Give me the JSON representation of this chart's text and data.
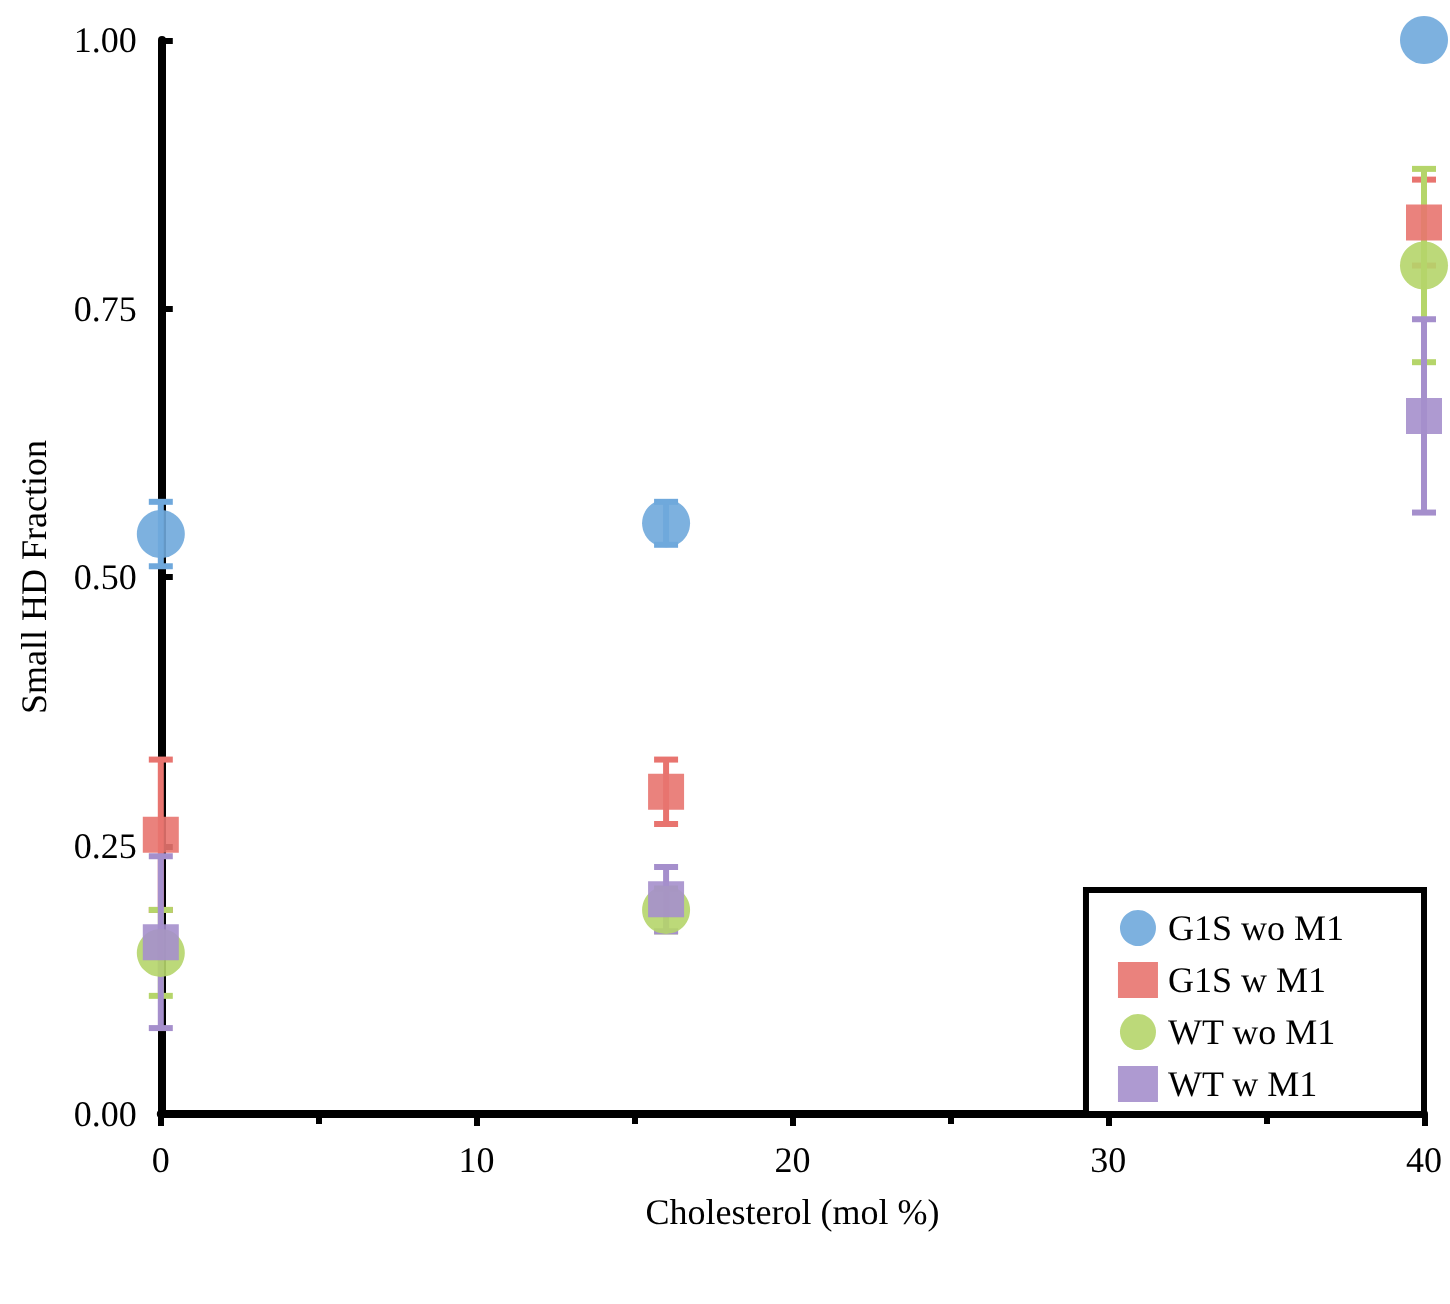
{
  "chart_data": {
    "type": "scatter",
    "xlabel": "Cholesterol (mol %)",
    "ylabel": "Small HD Fraction",
    "x": [
      0,
      16,
      40
    ],
    "series": [
      {
        "name": "G1S wo M1",
        "color": "#6fa8dc",
        "marker": "circle",
        "values": [
          0.54,
          0.55,
          1.0
        ],
        "errors": [
          0.03,
          0.02,
          null
        ]
      },
      {
        "name": "G1S w M1",
        "color": "#e8746f",
        "marker": "square",
        "values": [
          0.26,
          0.3,
          0.83
        ],
        "errors": [
          0.07,
          0.03,
          0.04
        ]
      },
      {
        "name": "WT wo M1",
        "color": "#b5d56a",
        "marker": "circle",
        "values": [
          0.15,
          0.19,
          0.79
        ],
        "errors": [
          0.04,
          0.02,
          0.09
        ]
      },
      {
        "name": "WT w M1",
        "color": "#a58fcc",
        "marker": "square",
        "values": [
          0.16,
          0.2,
          0.65
        ],
        "errors": [
          0.08,
          0.03,
          0.09
        ]
      }
    ],
    "xlim": [
      0,
      40
    ],
    "xticks": [
      0,
      10,
      20,
      30,
      40
    ],
    "ylim": [
      0,
      1
    ],
    "yticks": [
      {
        "value": 0,
        "label": "0.00"
      },
      {
        "value": 0.25,
        "label": "0.25"
      },
      {
        "value": 0.5,
        "label": "0.50"
      },
      {
        "value": 0.75,
        "label": "0.75"
      },
      {
        "value": 1,
        "label": "1.00"
      }
    ],
    "grid": false,
    "legend": "bottom right"
  }
}
